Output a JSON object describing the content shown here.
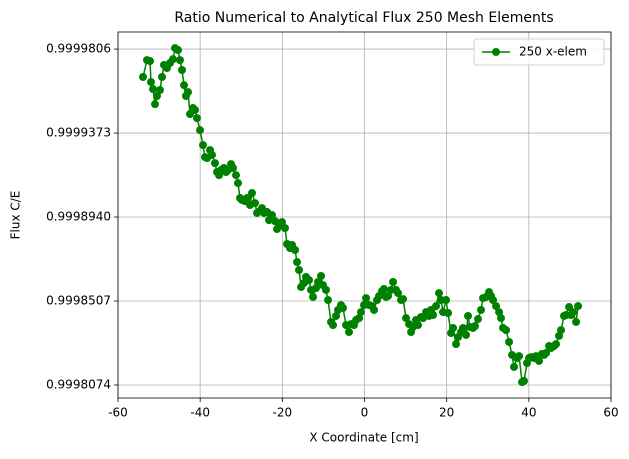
{
  "chart_data": {
    "type": "line",
    "title": "Ratio Numerical to Analytical Flux 250 Mesh Elements",
    "x_label": "X Coordinate [cm]",
    "y_label": "Flux C/E",
    "xlim": [
      -60,
      60
    ],
    "xticks": [
      -60,
      -40,
      -20,
      0,
      20,
      40,
      60
    ],
    "ylim": [
      0.9998007,
      0.9999894
    ],
    "yticks": [
      0.9998074,
      0.9998507,
      {
        "value": 0.999894,
        "label": "0.9998940"
      },
      0.9999373,
      0.9999806
    ],
    "grid": true,
    "legend": "upper right",
    "series": [
      {
        "name": "250 x-elem",
        "color": "#008000",
        "x": [
          -53.91,
          -52.94,
          -52.21,
          -51.97,
          -51.48,
          -50.99,
          -50.51,
          -49.78,
          -49.29,
          -48.8,
          -48.07,
          -47.34,
          -46.61,
          -46.12,
          -45.39,
          -44.91,
          -44.42,
          -43.93,
          -43.45,
          -42.96,
          -42.47,
          -41.74,
          -41.26,
          -40.77,
          -40.04,
          -39.31,
          -38.82,
          -38.33,
          -37.6,
          -37.12,
          -36.39,
          -35.9,
          -35.41,
          -34.93,
          -34.2,
          -33.71,
          -33.22,
          -32.49,
          -32.01,
          -31.28,
          -30.79,
          -30.3,
          -29.81,
          -29.08,
          -28.6,
          -27.87,
          -27.38,
          -26.65,
          -26.16,
          -25.43,
          -24.95,
          -24.46,
          -23.73,
          -23.24,
          -22.51,
          -21.78,
          -21.29,
          -20.56,
          -20.08,
          -19.35,
          -18.86,
          -18.13,
          -17.64,
          -16.91,
          -16.43,
          -15.94,
          -15.45,
          -14.72,
          -14.24,
          -13.5,
          -13.02,
          -12.53,
          -11.8,
          -11.31,
          -10.58,
          -10.1,
          -9.37,
          -8.88,
          -8.15,
          -7.66,
          -6.93,
          -6.45,
          -5.72,
          -5.23,
          -4.5,
          -3.77,
          -3.28,
          -2.55,
          -2.06,
          -1.33,
          -0.85,
          -0.12,
          0.37,
          1.1,
          1.83,
          2.32,
          3.05,
          3.54,
          4.27,
          4.75,
          5.24,
          5.73,
          6.46,
          6.94,
          7.67,
          8.16,
          8.89,
          9.38,
          10.11,
          10.84,
          11.33,
          11.81,
          12.54,
          13.03,
          13.76,
          14.25,
          14.98,
          15.71,
          16.19,
          16.68,
          17.41,
          18.14,
          18.63,
          19.11,
          19.85,
          20.33,
          21.06,
          21.55,
          22.28,
          22.77,
          23.5,
          23.98,
          24.71,
          25.2,
          25.69,
          26.42,
          26.9,
          27.63,
          28.36,
          28.85,
          29.58,
          30.31,
          30.8,
          31.29,
          32.02,
          32.75,
          33.23,
          33.72,
          34.45,
          35.18,
          35.91,
          36.4,
          37.13,
          37.62,
          38.35,
          38.83,
          39.56,
          40.05,
          40.54,
          41.27,
          41.75,
          42.48,
          43.21,
          43.7,
          44.19,
          44.92,
          45.41,
          46.14,
          46.62,
          47.35,
          47.84,
          48.57,
          49.06,
          49.79,
          50.27,
          50.76,
          51.49,
          51.98
        ],
        "values": [
          0.9999662,
          0.9999749,
          0.9999744,
          0.9999636,
          0.99996,
          0.9999522,
          0.9999564,
          0.9999595,
          0.9999662,
          0.9999724,
          0.9999708,
          0.9999734,
          0.9999754,
          0.9999811,
          0.9999801,
          0.9999749,
          0.9999698,
          0.999962,
          0.9999564,
          0.9999584,
          0.9999471,
          0.9999502,
          0.9999492,
          0.999945,
          0.9999388,
          0.9999311,
          0.9999249,
          0.9999244,
          0.9999285,
          0.999926,
          0.9999218,
          0.9999172,
          0.9999156,
          0.9999182,
          0.9999193,
          0.9999172,
          0.9999182,
          0.9999213,
          0.9999193,
          0.9999156,
          0.9999115,
          0.9999038,
          0.9999028,
          0.9999022,
          0.9999038,
          0.9999002,
          0.9999064,
          0.9999012,
          0.9998961,
          0.9998971,
          0.9998986,
          0.9998961,
          0.9998966,
          0.9998924,
          0.999895,
          0.9998919,
          0.9998878,
          0.9998899,
          0.9998914,
          0.9998883,
          0.9998801,
          0.999878,
          0.9998796,
          0.999877,
          0.9998708,
          0.9998667,
          0.9998579,
          0.99986,
          0.9998631,
          0.9998615,
          0.9998564,
          0.9998528,
          0.9998574,
          0.9998605,
          0.9998636,
          0.9998589,
          0.9998564,
          0.9998512,
          0.9998399,
          0.9998383,
          0.999843,
          0.9998461,
          0.9998486,
          0.9998471,
          0.9998383,
          0.9998347,
          0.9998388,
          0.9998383,
          0.9998409,
          0.9998419,
          0.999845,
          0.9998486,
          0.9998522,
          0.9998486,
          0.9998481,
          0.9998461,
          0.9998512,
          0.9998533,
          0.9998558,
          0.9998569,
          0.9998528,
          0.9998533,
          0.9998564,
          0.9998605,
          0.9998564,
          0.9998548,
          0.9998512,
          0.9998517,
          0.9998419,
          0.9998388,
          0.9998347,
          0.9998373,
          0.9998409,
          0.9998383,
          0.9998424,
          0.9998419,
          0.999845,
          0.999843,
          0.9998461,
          0.9998435,
          0.9998481,
          0.9998548,
          0.9998512,
          0.999845,
          0.9998512,
          0.9998445,
          0.9998342,
          0.9998368,
          0.9998285,
          0.9998321,
          0.9998347,
          0.9998368,
          0.9998332,
          0.999843,
          0.9998373,
          0.9998368,
          0.9998378,
          0.9998414,
          0.9998461,
          0.9998522,
          0.9998528,
          0.9998553,
          0.9998533,
          0.9998512,
          0.9998481,
          0.999845,
          0.9998419,
          0.9998368,
          0.9998357,
          0.9998296,
          0.9998229,
          0.9998167,
          0.9998213,
          0.9998223,
          0.9998089,
          0.9998095,
          0.9998187,
          0.9998213,
          0.9998218,
          0.9998213,
          0.9998223,
          0.9998198,
          0.9998234,
          0.9998229,
          0.9998239,
          0.9998275,
          0.9998265,
          0.9998275,
          0.9998285,
          0.9998327,
          0.9998357,
          0.999843,
          0.9998435,
          0.9998476,
          0.9998435,
          0.999845,
          0.9998399,
          0.9998481
        ]
      }
    ]
  }
}
